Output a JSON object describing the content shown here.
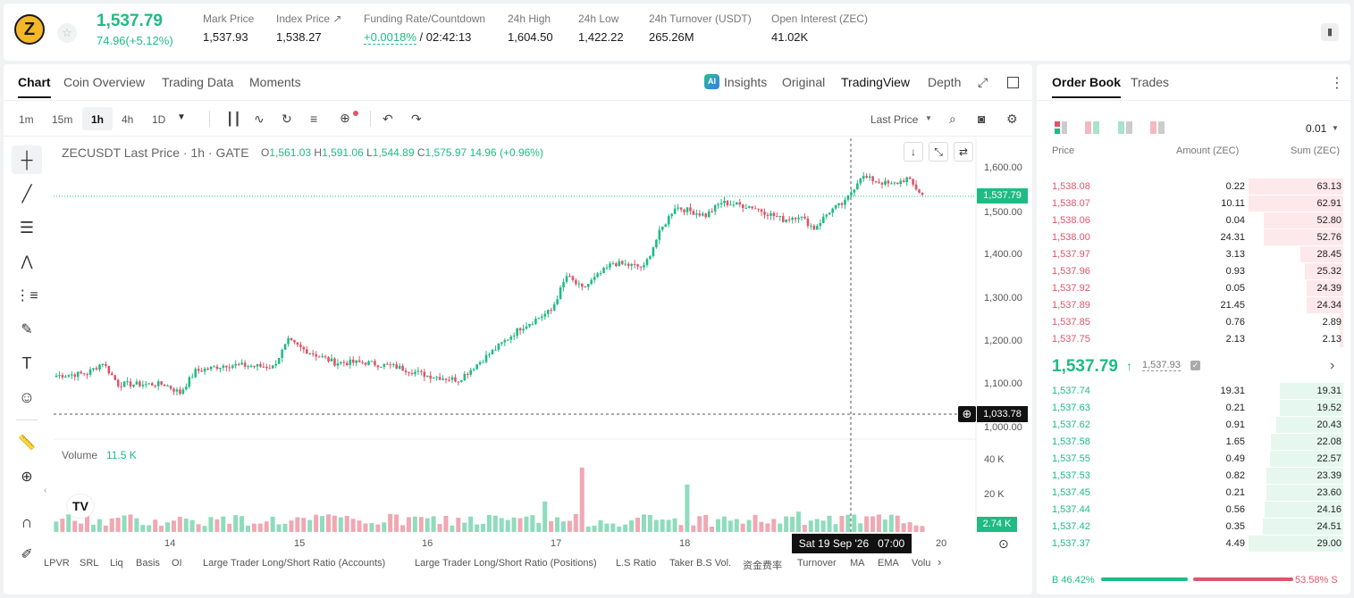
{
  "header": {
    "coin_symbol": "Z",
    "last_price": "1,537.79",
    "change": "74.96(+5.12%)",
    "stats": [
      {
        "label": "Mark Price",
        "value": "1,537.93"
      },
      {
        "label": "Index Price ↗",
        "value": "1,538.27"
      },
      {
        "label": "Funding Rate/Countdown",
        "value_green": "+0.0018%",
        "value": "/ 02:42:13"
      },
      {
        "label": "24h High",
        "value": "1,604.50"
      },
      {
        "label": "24h Low",
        "value": "1,422.22"
      },
      {
        "label": "24h Turnover (USDT)",
        "value": "265.26M"
      },
      {
        "label": "Open Interest (ZEC)",
        "value": "41.02K"
      }
    ]
  },
  "chart_tabs": [
    "Chart",
    "Coin Overview",
    "Trading Data",
    "Moments"
  ],
  "view_tabs": [
    "Insights",
    "Original",
    "TradingView",
    "Depth"
  ],
  "intervals": [
    "1m",
    "15m",
    "1h",
    "4h",
    "1D"
  ],
  "price_type": "Last Price",
  "legend": {
    "symbol": "ZECUSDT Last Price · 1h · GATE",
    "o": "1,561.03",
    "h": "1,591.06",
    "l": "1,544.89",
    "c": "1,575.97",
    "chg": "14.96 (+0.96%)"
  },
  "volume_label": "Volume",
  "volume_value": "11.5 K",
  "price_axis": [
    "1,600.00",
    "1,500.00",
    "1,400.00",
    "1,300.00",
    "1,200.00",
    "1,100.00",
    "1,000.00"
  ],
  "volume_axis": [
    "40 K",
    "20 K"
  ],
  "time_axis": [
    "14",
    "15",
    "16",
    "17",
    "18",
    "20"
  ],
  "last_price_tag": "1,537.79",
  "crosshair_price": "1,033.78",
  "crosshair_time": "Sat 19 Sep '26   07:00",
  "volume_tag": "2.74 K",
  "indicators": [
    "LPVR",
    "SRL",
    "Liq",
    "Basis",
    "OI",
    "Large Trader Long/Short Ratio (Accounts)",
    "Large Trader Long/Short Ratio (Positions)",
    "L.S Ratio",
    "Taker B.S Vol.",
    "资金费率",
    "Turnover",
    "MA",
    "EMA",
    "Volu"
  ],
  "orderbook": {
    "tabs": [
      "Order Book",
      "Trades"
    ],
    "tick": "0.01",
    "headers": [
      "Price",
      "Amount (ZEC)",
      "Sum (ZEC)"
    ],
    "asks": [
      {
        "price": "1,538.08",
        "amount": "0.22",
        "sum": "63.13",
        "depth": 1.0
      },
      {
        "price": "1,538.07",
        "amount": "10.11",
        "sum": "62.91",
        "depth": 0.996
      },
      {
        "price": "1,538.06",
        "amount": "0.04",
        "sum": "52.80",
        "depth": 0.836
      },
      {
        "price": "1,538.00",
        "amount": "24.31",
        "sum": "52.76",
        "depth": 0.836
      },
      {
        "price": "1,537.97",
        "amount": "3.13",
        "sum": "28.45",
        "depth": 0.451
      },
      {
        "price": "1,537.96",
        "amount": "0.93",
        "sum": "25.32",
        "depth": 0.401
      },
      {
        "price": "1,537.92",
        "amount": "0.05",
        "sum": "24.39",
        "depth": 0.386
      },
      {
        "price": "1,537.89",
        "amount": "21.45",
        "sum": "24.34",
        "depth": 0.386
      },
      {
        "price": "1,537.85",
        "amount": "0.76",
        "sum": "2.89",
        "depth": 0.046
      },
      {
        "price": "1,537.75",
        "amount": "2.13",
        "sum": "2.13",
        "depth": 0.034
      }
    ],
    "mid_price": "1,537.79",
    "mid_mark": "1,537.93",
    "bids": [
      {
        "price": "1,537.74",
        "amount": "19.31",
        "sum": "19.31",
        "depth": 0.666
      },
      {
        "price": "1,537.63",
        "amount": "0.21",
        "sum": "19.52",
        "depth": 0.673
      },
      {
        "price": "1,537.62",
        "amount": "0.91",
        "sum": "20.43",
        "depth": 0.705
      },
      {
        "price": "1,537.58",
        "amount": "1.65",
        "sum": "22.08",
        "depth": 0.761
      },
      {
        "price": "1,537.55",
        "amount": "0.49",
        "sum": "22.57",
        "depth": 0.778
      },
      {
        "price": "1,537.53",
        "amount": "0.82",
        "sum": "23.39",
        "depth": 0.807
      },
      {
        "price": "1,537.45",
        "amount": "0.21",
        "sum": "23.60",
        "depth": 0.814
      },
      {
        "price": "1,537.44",
        "amount": "0.56",
        "sum": "24.16",
        "depth": 0.833
      },
      {
        "price": "1,537.42",
        "amount": "0.35",
        "sum": "24.51",
        "depth": 0.845
      },
      {
        "price": "1,537.37",
        "amount": "4.49",
        "sum": "29.00",
        "depth": 1.0
      }
    ],
    "buy_ratio_label": "B",
    "buy_ratio": "46.42%",
    "sell_ratio": "53.58%",
    "sell_ratio_label": "S",
    "buy_fraction": 0.4642
  },
  "colors": {
    "up": "#1fbb82",
    "down": "#e0556a",
    "up_bar": "#8fdcbd",
    "down_bar": "#f0a8b3"
  }
}
